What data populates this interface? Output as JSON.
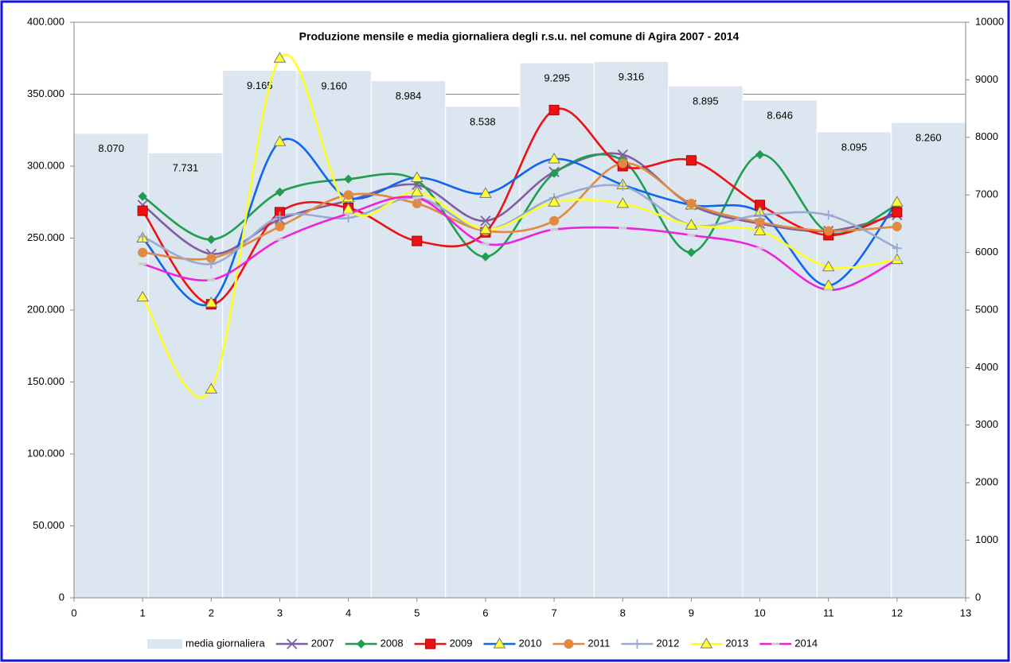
{
  "chart_data": {
    "type": "line",
    "title": "Produzione mensile  e media giornaliera degli r.s.u. nel comune di Agira 2007 - 2014",
    "x": [
      1,
      2,
      3,
      4,
      5,
      6,
      7,
      8,
      9,
      10,
      11,
      12
    ],
    "xlim": [
      0,
      13
    ],
    "xticks": [
      0,
      1,
      2,
      3,
      4,
      5,
      6,
      7,
      8,
      9,
      10,
      11,
      12,
      13
    ],
    "ylim": [
      0,
      400000
    ],
    "yticks": [
      0,
      {
        "value": 50000,
        "label": "50.000"
      },
      {
        "value": 100000,
        "label": "100.000"
      },
      {
        "value": 150000,
        "label": "150.000"
      },
      {
        "value": 200000,
        "label": "200.000"
      },
      {
        "value": 250000,
        "label": "250.000"
      },
      {
        "value": 300000,
        "label": "300.000"
      },
      {
        "value": 350000,
        "label": "350.000"
      },
      {
        "value": 400000,
        "label": "400.000"
      }
    ],
    "y2lim": [
      0,
      10000
    ],
    "y2ticks": [
      0,
      1000,
      2000,
      3000,
      4000,
      5000,
      6000,
      7000,
      8000,
      9000,
      10000
    ],
    "grid": true,
    "bars": {
      "name": "media giornaliera",
      "color": "#dce6f1",
      "axis": "y2",
      "values": [
        8070,
        7731,
        9165,
        9160,
        8984,
        8538,
        9295,
        9316,
        8895,
        8646,
        8095,
        8260
      ],
      "value_labels": [
        "8.070",
        "7.731",
        "9.165",
        "9.160",
        "8.984",
        "8.538",
        "9.295",
        "9.316",
        "8.895",
        "8.646",
        "8.095",
        "8.260"
      ]
    },
    "series": [
      {
        "name": "2007",
        "color": "#7f5f9f",
        "marker": "x",
        "values": [
          273000,
          239000,
          263000,
          276000,
          287000,
          262000,
          296000,
          308000,
          273000,
          260000,
          255000,
          266000
        ]
      },
      {
        "name": "2008",
        "color": "#1e9e4e",
        "marker": "diamond",
        "values": [
          279000,
          249000,
          282000,
          291000,
          290000,
          237000,
          295000,
          304000,
          240000,
          308000,
          254000,
          273000
        ]
      },
      {
        "name": "2009",
        "color": "#ee1111",
        "marker": "square",
        "values": [
          269000,
          204000,
          268000,
          271000,
          248000,
          254000,
          339000,
          300000,
          304000,
          273000,
          252000,
          268000
        ]
      },
      {
        "name": "2010",
        "color": "#1166ee",
        "marker": "triangle",
        "values": [
          250000,
          205000,
          317000,
          278000,
          292000,
          281000,
          305000,
          287000,
          273000,
          268000,
          217000,
          275000
        ]
      },
      {
        "name": "2011",
        "color": "#e08a40",
        "marker": "circle",
        "values": [
          240000,
          236000,
          258000,
          280000,
          274000,
          255000,
          262000,
          302000,
          274000,
          261000,
          255000,
          258000
        ]
      },
      {
        "name": "2012",
        "color": "#9aaad0",
        "marker": "plus",
        "values": [
          251000,
          232000,
          265000,
          264000,
          278000,
          256000,
          278000,
          286000,
          259000,
          266000,
          266000,
          243000
        ]
      },
      {
        "name": "2013",
        "color": "#ffff22",
        "marker": "triangle",
        "values": [
          209000,
          145000,
          375000,
          270000,
          282000,
          256000,
          275000,
          274000,
          259000,
          255000,
          230000,
          235000
        ]
      },
      {
        "name": "2014",
        "color": "#ee22dd",
        "marker": "dash",
        "values": [
          232000,
          221000,
          249000,
          267000,
          278000,
          246000,
          256000,
          257000,
          252000,
          243000,
          214000,
          235000
        ]
      }
    ]
  }
}
